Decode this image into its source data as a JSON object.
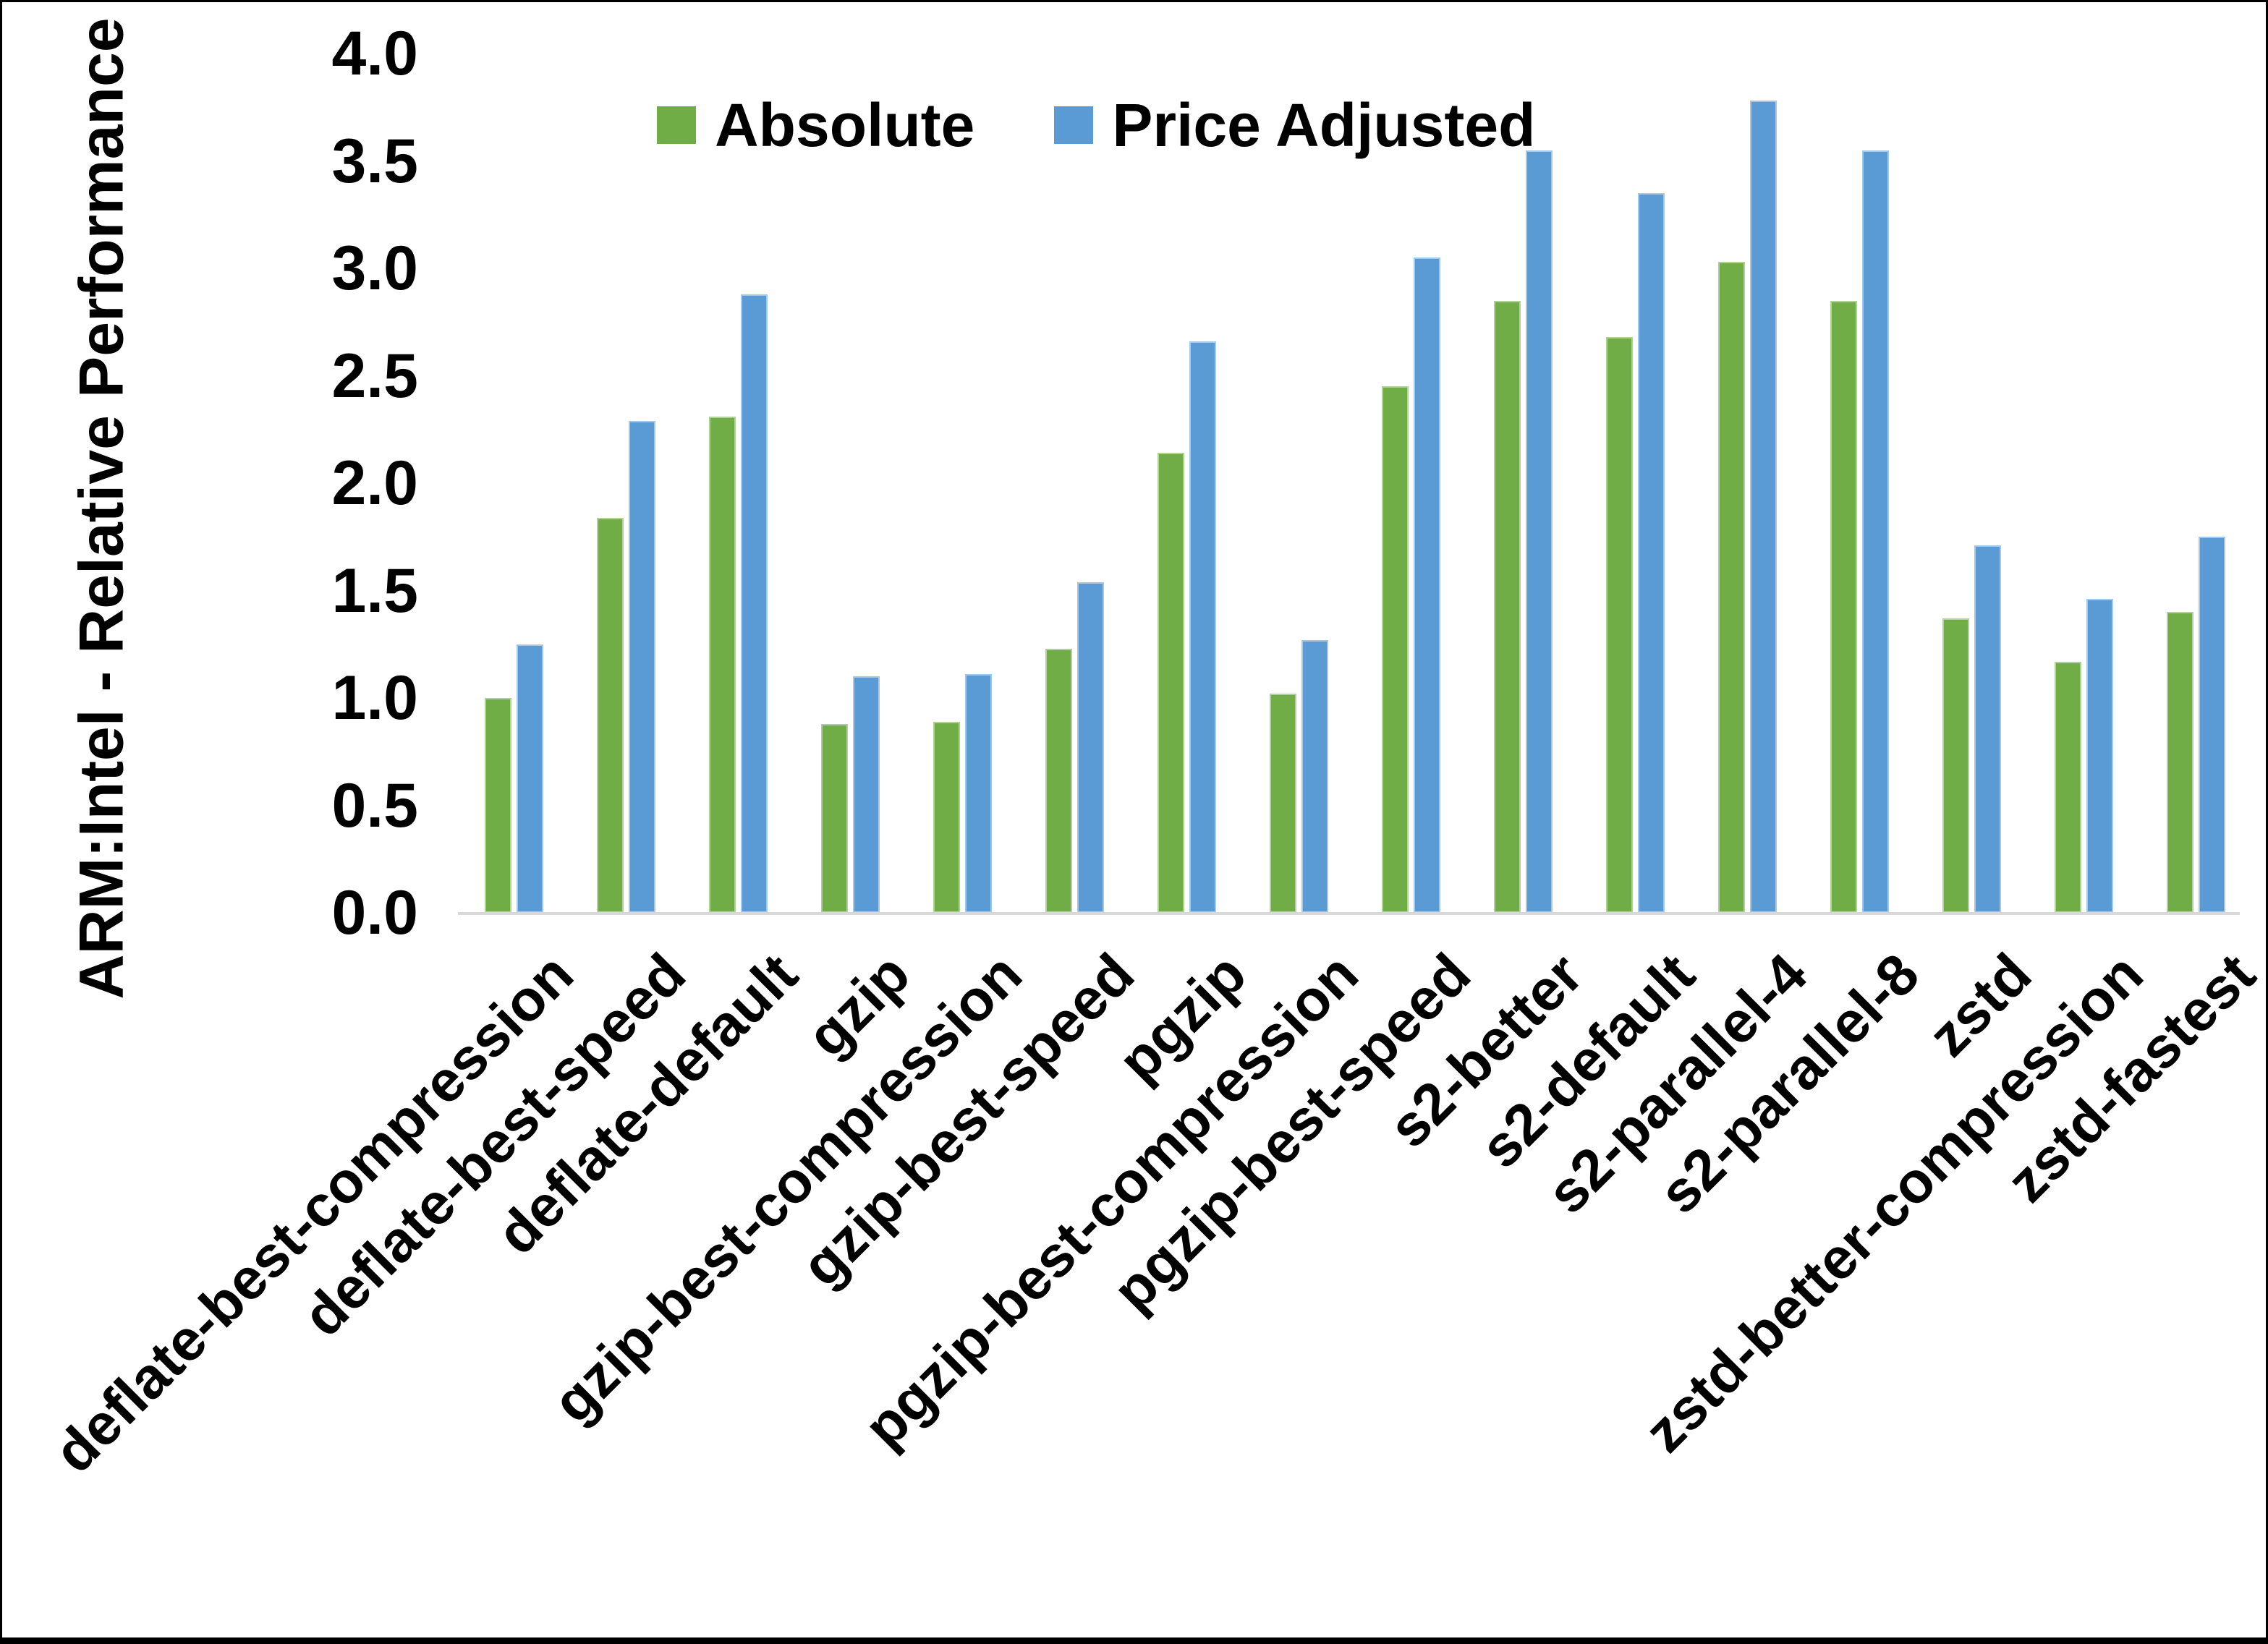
{
  "chart_data": {
    "type": "bar",
    "title": "",
    "xlabel": "",
    "ylabel": "ARM:Intel - Relative Performance",
    "ylim": [
      0,
      4
    ],
    "ytick_step": 0.5,
    "yticks": [
      "0.0",
      "0.5",
      "1.0",
      "1.5",
      "2.0",
      "2.5",
      "3.0",
      "3.5",
      "4.0"
    ],
    "grid": "off",
    "legend_position": "top-center",
    "categories": [
      "deflate-best-compression",
      "deflate-best-speed",
      "deflate-default",
      "gzip",
      "gzip-best-compression",
      "gzip-best-speed",
      "pgzip",
      "pgzip-best-compression",
      "pgzip-best-speed",
      "s2-better",
      "s2-default",
      "s2-parallel-4",
      "s2-parallel-8",
      "zstd",
      "zstd-better-compression",
      "zstd-fastest"
    ],
    "series": [
      {
        "name": "Absolute",
        "color": "#70AD47",
        "values": [
          1.0,
          1.84,
          2.31,
          0.88,
          0.89,
          1.23,
          2.14,
          1.02,
          2.45,
          2.85,
          2.68,
          3.03,
          2.85,
          1.37,
          1.17,
          1.4
        ]
      },
      {
        "name": "Price Adjusted",
        "color": "#5B9BD5",
        "values": [
          1.25,
          2.29,
          2.88,
          1.1,
          1.11,
          1.54,
          2.66,
          1.27,
          3.05,
          3.55,
          3.35,
          3.78,
          3.55,
          1.71,
          1.46,
          1.75
        ]
      }
    ]
  },
  "colors": {
    "background": "#FFFFFF",
    "axis_line": "#D9D9D9",
    "text": "#000000",
    "frame_border": "#000000"
  }
}
